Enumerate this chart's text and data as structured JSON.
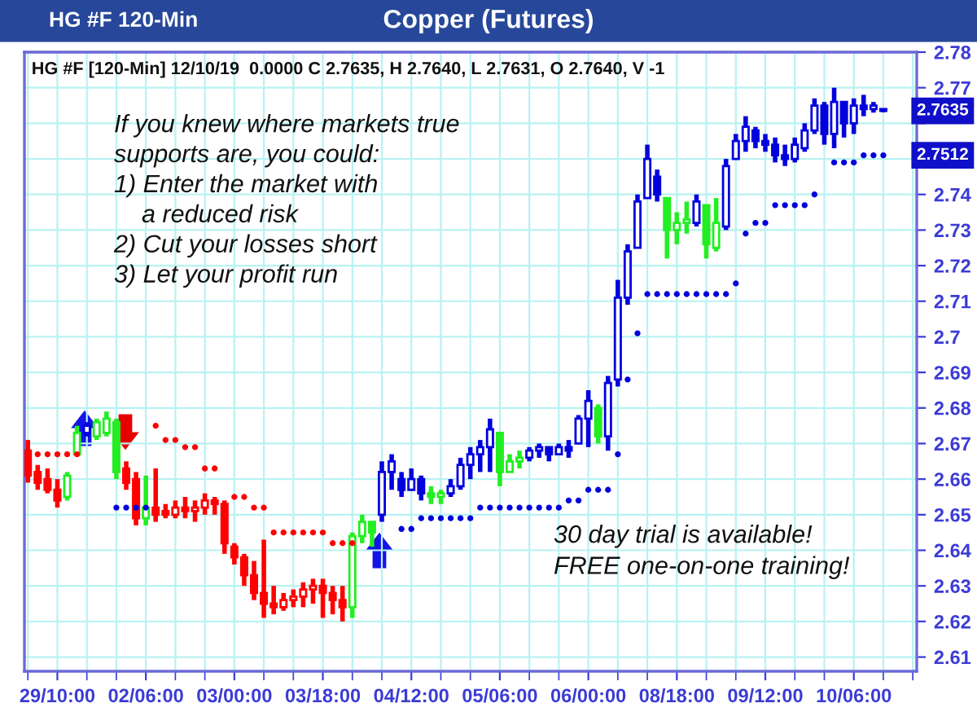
{
  "chart_data": {
    "type": "candlestick",
    "title": "Copper (Futures)",
    "subtitle": "HG #F [120-Min] 12/10/19  0.0000 C 2.7635, H 2.7640, L 2.7631, O 2.7640, V -1",
    "annotations": [
      "HG #F 120-Min",
      "If you knew where markets true\nsupports are, you could:\n1) Enter the market with\n    a reduced risk\n2) Cut your losses short\n3) Let your profit run",
      "30 day trial is available!\nFREE one-on-one training!",
      "2.7635",
      "2.7512"
    ],
    "categories": [
      null,
      null,
      null,
      "29/10:00",
      null,
      null,
      null,
      null,
      null,
      null,
      null,
      null,
      "02/06:00",
      null,
      null,
      null,
      null,
      null,
      null,
      null,
      null,
      "03/00:00",
      null,
      null,
      null,
      null,
      null,
      null,
      null,
      null,
      "03/18:00",
      null,
      null,
      null,
      null,
      null,
      null,
      null,
      null,
      "04/12:00",
      null,
      null,
      null,
      null,
      null,
      null,
      null,
      null,
      "05/06:00",
      null,
      null,
      null,
      null,
      null,
      null,
      null,
      null,
      "06/00:00",
      null,
      null,
      null,
      null,
      null,
      null,
      null,
      null,
      "08/18:00",
      null,
      null,
      null,
      null,
      null,
      null,
      null,
      null,
      "09/12:00",
      null,
      null,
      null,
      null,
      null,
      null,
      null,
      null,
      "10/06:00",
      null,
      null,
      null
    ],
    "ohlc": [
      [
        2.668,
        2.671,
        2.659,
        2.661
      ],
      [
        2.662,
        2.664,
        2.657,
        2.659
      ],
      [
        2.66,
        2.663,
        2.656,
        2.657
      ],
      [
        2.657,
        2.66,
        2.652,
        2.654
      ],
      [
        2.655,
        2.662,
        2.654,
        2.661
      ],
      [
        2.667,
        2.675,
        2.667,
        2.673
      ],
      [
        2.673,
        2.676,
        2.672,
        2.675
      ],
      [
        2.672,
        2.677,
        2.671,
        2.676
      ],
      [
        2.673,
        2.679,
        2.672,
        2.677
      ],
      [
        2.676,
        2.677,
        2.66,
        2.662
      ],
      [
        2.663,
        2.665,
        2.657,
        2.659
      ],
      [
        2.66,
        2.662,
        2.647,
        2.649
      ],
      [
        2.649,
        2.661,
        2.647,
        2.652
      ],
      [
        2.652,
        2.663,
        2.648,
        2.65
      ],
      [
        2.651,
        2.653,
        2.649,
        2.65
      ],
      [
        2.65,
        2.654,
        2.649,
        2.652
      ],
      [
        2.652,
        2.655,
        2.649,
        2.651
      ],
      [
        2.651,
        2.654,
        2.648,
        2.652
      ],
      [
        2.652,
        2.656,
        2.65,
        2.654
      ],
      [
        2.654,
        2.655,
        2.65,
        2.653
      ],
      [
        2.653,
        2.654,
        2.639,
        2.642
      ],
      [
        2.641,
        2.642,
        2.636,
        2.638
      ],
      [
        2.638,
        2.639,
        2.63,
        2.633
      ],
      [
        2.633,
        2.637,
        2.626,
        2.628
      ],
      [
        2.628,
        2.643,
        2.621,
        2.625
      ],
      [
        2.625,
        2.63,
        2.622,
        2.624
      ],
      [
        2.624,
        2.628,
        2.623,
        2.626
      ],
      [
        2.626,
        2.629,
        2.624,
        2.627
      ],
      [
        2.627,
        2.631,
        2.624,
        2.629
      ],
      [
        2.629,
        2.632,
        2.625,
        2.63
      ],
      [
        2.63,
        2.632,
        2.621,
        2.628
      ],
      [
        2.628,
        2.63,
        2.622,
        2.626
      ],
      [
        2.626,
        2.63,
        2.62,
        2.624
      ],
      [
        2.624,
        2.645,
        2.621,
        2.644
      ],
      [
        2.644,
        2.65,
        2.642,
        2.648
      ],
      [
        2.648,
        2.648,
        2.641,
        2.645
      ],
      [
        2.65,
        2.665,
        2.648,
        2.662
      ],
      [
        2.662,
        2.667,
        2.657,
        2.665
      ],
      [
        2.66,
        2.662,
        2.655,
        2.657
      ],
      [
        2.657,
        2.663,
        2.657,
        2.66
      ],
      [
        2.66,
        2.661,
        2.654,
        2.656
      ],
      [
        2.656,
        2.658,
        2.653,
        2.655
      ],
      [
        2.655,
        2.657,
        2.653,
        2.656
      ],
      [
        2.656,
        2.66,
        2.655,
        2.658
      ],
      [
        2.658,
        2.666,
        2.657,
        2.664
      ],
      [
        2.664,
        2.669,
        2.66,
        2.667
      ],
      [
        2.667,
        2.671,
        2.662,
        2.669
      ],
      [
        2.669,
        2.677,
        2.662,
        2.674
      ],
      [
        2.673,
        2.673,
        2.658,
        2.662
      ],
      [
        2.662,
        2.667,
        2.662,
        2.665
      ],
      [
        2.665,
        2.668,
        2.663,
        2.666
      ],
      [
        2.666,
        2.669,
        2.665,
        2.668
      ],
      [
        2.668,
        2.67,
        2.666,
        2.669
      ],
      [
        2.669,
        2.669,
        2.665,
        2.667
      ],
      [
        2.667,
        2.67,
        2.667,
        2.669
      ],
      [
        2.669,
        2.671,
        2.666,
        2.668
      ],
      [
        2.67,
        2.678,
        2.67,
        2.677
      ],
      [
        2.677,
        2.685,
        2.669,
        2.682
      ],
      [
        2.68,
        2.681,
        2.67,
        2.672
      ],
      [
        2.672,
        2.689,
        2.668,
        2.687
      ],
      [
        2.688,
        2.716,
        2.686,
        2.711
      ],
      [
        2.711,
        2.726,
        2.709,
        2.724
      ],
      [
        2.725,
        2.74,
        2.725,
        2.738
      ],
      [
        2.739,
        2.754,
        2.739,
        2.75
      ],
      [
        2.745,
        2.747,
        2.738,
        2.74
      ],
      [
        2.739,
        2.739,
        2.722,
        2.73
      ],
      [
        2.73,
        2.735,
        2.726,
        2.732
      ],
      [
        2.732,
        2.738,
        2.729,
        2.733
      ],
      [
        2.732,
        2.74,
        2.731,
        2.738
      ],
      [
        2.737,
        2.737,
        2.722,
        2.726
      ],
      [
        2.725,
        2.739,
        2.724,
        2.732
      ],
      [
        2.731,
        2.75,
        2.73,
        2.748
      ],
      [
        2.75,
        2.757,
        2.75,
        2.755
      ],
      [
        2.755,
        2.762,
        2.752,
        2.759
      ],
      [
        2.758,
        2.759,
        2.753,
        2.755
      ],
      [
        2.755,
        2.757,
        2.752,
        2.754
      ],
      [
        2.754,
        2.756,
        2.749,
        2.751
      ],
      [
        2.751,
        2.754,
        2.748,
        2.75
      ],
      [
        2.75,
        2.756,
        2.749,
        2.754
      ],
      [
        2.753,
        2.76,
        2.752,
        2.758
      ],
      [
        2.758,
        2.767,
        2.757,
        2.765
      ],
      [
        2.765,
        2.766,
        2.754,
        2.757
      ],
      [
        2.757,
        2.77,
        2.753,
        2.766
      ],
      [
        2.766,
        2.766,
        2.756,
        2.76
      ],
      [
        2.76,
        2.767,
        2.757,
        2.765
      ],
      [
        2.765,
        2.768,
        2.762,
        2.764
      ],
      [
        2.764,
        2.766,
        2.763,
        2.765
      ],
      [
        2.764,
        2.764,
        2.7631,
        2.7635
      ]
    ],
    "colors": [
      "#ff0000",
      "#ff0000",
      "#ff0000",
      "#ff0000",
      "#22ee22",
      "#22ee22",
      "#0000dd",
      "#22ee22",
      "#22ee22",
      "#22ee22",
      "#ff0000",
      "#ff0000",
      "#22ee22",
      "#ff0000",
      "#ff0000",
      "#ff0000",
      "#ff0000",
      "#ff0000",
      "#ff0000",
      "#ff0000",
      "#ff0000",
      "#ff0000",
      "#ff0000",
      "#ff0000",
      "#ff0000",
      "#ff0000",
      "#ff0000",
      "#ff0000",
      "#ff0000",
      "#ff0000",
      "#ff0000",
      "#ff0000",
      "#ff0000",
      "#22ee22",
      "#22ee22",
      "#22ee22",
      "#0000dd",
      "#0000dd",
      "#0000dd",
      "#0000dd",
      "#0000dd",
      "#22ee22",
      "#22ee22",
      "#0000dd",
      "#0000dd",
      "#0000dd",
      "#0000dd",
      "#0000dd",
      "#22ee22",
      "#22ee22",
      "#22ee22",
      "#0000dd",
      "#0000dd",
      "#0000dd",
      "#0000dd",
      "#0000dd",
      "#0000dd",
      "#0000dd",
      "#22ee22",
      "#0000dd",
      "#0000dd",
      "#0000dd",
      "#0000dd",
      "#0000dd",
      "#0000dd",
      "#22ee22",
      "#22ee22",
      "#22ee22",
      "#0000dd",
      "#22ee22",
      "#22ee22",
      "#0000dd",
      "#0000dd",
      "#0000dd",
      "#0000dd",
      "#0000dd",
      "#0000dd",
      "#0000dd",
      "#0000dd",
      "#0000dd",
      "#0000dd",
      "#0000dd",
      "#0000dd",
      "#0000dd",
      "#0000dd",
      "#0000dd",
      "#0000dd",
      "#0000dd"
    ],
    "series": [
      {
        "type": "scatter",
        "color": "#ff0000",
        "values": [
          null,
          2.667,
          2.667,
          2.667,
          2.667,
          2.667,
          null,
          null,
          null,
          null,
          null,
          null,
          null,
          2.675,
          2.671,
          2.671,
          2.669,
          2.669,
          2.663,
          2.663,
          null,
          2.655,
          2.655,
          2.652,
          2.652,
          2.645,
          2.645,
          2.645,
          2.645,
          2.645,
          2.645,
          2.642,
          2.642,
          2.642,
          null,
          null,
          null,
          null,
          null,
          null,
          null,
          null,
          null,
          null,
          null,
          null,
          null,
          null,
          null,
          null,
          null,
          null,
          null,
          null,
          null,
          null,
          null,
          null,
          null,
          null,
          null,
          null,
          null,
          null,
          null,
          null,
          null,
          null,
          null,
          null,
          null,
          null,
          null,
          null,
          null,
          null,
          null,
          null,
          null,
          null,
          null,
          null,
          null,
          null,
          null,
          null,
          null,
          null
        ]
      },
      {
        "type": "scatter",
        "color": "#0000dd",
        "values": [
          null,
          null,
          null,
          null,
          null,
          null,
          null,
          null,
          null,
          2.652,
          2.652,
          2.652,
          2.652,
          null,
          null,
          null,
          null,
          null,
          null,
          null,
          null,
          null,
          null,
          null,
          null,
          null,
          null,
          null,
          null,
          null,
          null,
          null,
          null,
          null,
          null,
          null,
          null,
          null,
          2.646,
          2.646,
          2.649,
          2.649,
          2.649,
          2.649,
          2.649,
          2.649,
          2.652,
          2.652,
          2.652,
          2.652,
          2.652,
          2.652,
          2.652,
          2.652,
          2.652,
          2.654,
          2.654,
          2.657,
          2.657,
          2.657,
          2.667,
          2.688,
          2.701,
          2.712,
          2.712,
          2.712,
          2.712,
          2.712,
          2.712,
          2.712,
          2.712,
          2.712,
          2.715,
          2.729,
          2.732,
          2.732,
          2.737,
          2.737,
          2.737,
          2.737,
          2.74,
          null,
          2.749,
          2.749,
          2.749,
          2.751,
          2.751,
          2.751
        ]
      }
    ],
    "ylim": [
      2.606,
      2.78
    ],
    "yticks": [
      2.61,
      2.62,
      2.63,
      2.64,
      2.65,
      2.66,
      2.67,
      2.68,
      2.69,
      2.7,
      2.71,
      2.72,
      2.73,
      2.74,
      {
        "value": 2.75,
        "label": null
      },
      {
        "value": 2.76,
        "label": null
      },
      2.77,
      2.78
    ],
    "grid": true
  }
}
